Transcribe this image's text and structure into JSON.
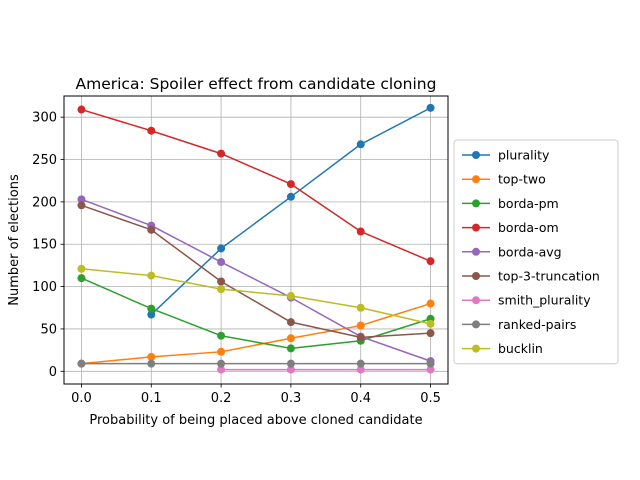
{
  "chart_data": {
    "type": "line",
    "title": "America: Spoiler effect from candidate cloning",
    "xlabel": "Probability of being placed above cloned candidate",
    "ylabel": "Number of elections",
    "x": [
      0.0,
      0.1,
      0.2,
      0.3,
      0.4,
      0.5
    ],
    "x_ticks": [
      "0.0",
      "0.1",
      "0.2",
      "0.3",
      "0.4",
      "0.5"
    ],
    "y_ticks": [
      "0",
      "50",
      "100",
      "150",
      "200",
      "250",
      "300"
    ],
    "xlim": [
      -0.025,
      0.525
    ],
    "ylim": [
      -15,
      325
    ],
    "grid": true,
    "legend_position": "right",
    "series": [
      {
        "name": "plurality",
        "color": "#1f77b4",
        "x": [
          0.1,
          0.2,
          0.3,
          0.4,
          0.5
        ],
        "values": [
          67,
          145,
          206,
          268,
          311
        ]
      },
      {
        "name": "top-two",
        "color": "#ff7f0e",
        "x": [
          0.0,
          0.1,
          0.2,
          0.3,
          0.4,
          0.5
        ],
        "values": [
          9,
          17,
          23,
          39,
          54,
          80
        ]
      },
      {
        "name": "borda-pm",
        "color": "#2ca02c",
        "x": [
          0.0,
          0.1,
          0.2,
          0.3,
          0.4,
          0.5
        ],
        "values": [
          110,
          74,
          42,
          27,
          36,
          62
        ]
      },
      {
        "name": "borda-om",
        "color": "#d62728",
        "x": [
          0.0,
          0.1,
          0.2,
          0.3,
          0.4,
          0.5
        ],
        "values": [
          309,
          284,
          257,
          221,
          165,
          130
        ]
      },
      {
        "name": "borda-avg",
        "color": "#9467bd",
        "x": [
          0.0,
          0.1,
          0.2,
          0.3,
          0.4,
          0.5
        ],
        "values": [
          203,
          172,
          129,
          87,
          41,
          12
        ]
      },
      {
        "name": "top-3-truncation",
        "color": "#8c564b",
        "x": [
          0.0,
          0.1,
          0.2,
          0.3,
          0.4,
          0.5
        ],
        "values": [
          196,
          167,
          106,
          58,
          40,
          45
        ]
      },
      {
        "name": "smith_plurality",
        "color": "#e377c2",
        "x": [
          0.2,
          0.3,
          0.4,
          0.5
        ],
        "values": [
          2,
          2,
          2,
          2
        ]
      },
      {
        "name": "ranked-pairs",
        "color": "#7f7f7f",
        "x": [
          0.0,
          0.1,
          0.2,
          0.3,
          0.4,
          0.5
        ],
        "values": [
          9,
          9,
          9,
          9,
          9,
          9
        ]
      },
      {
        "name": "bucklin",
        "color": "#bcbd22",
        "x": [
          0.0,
          0.1,
          0.2,
          0.3,
          0.4,
          0.5
        ],
        "values": [
          121,
          113,
          97,
          89,
          75,
          56
        ]
      }
    ]
  }
}
